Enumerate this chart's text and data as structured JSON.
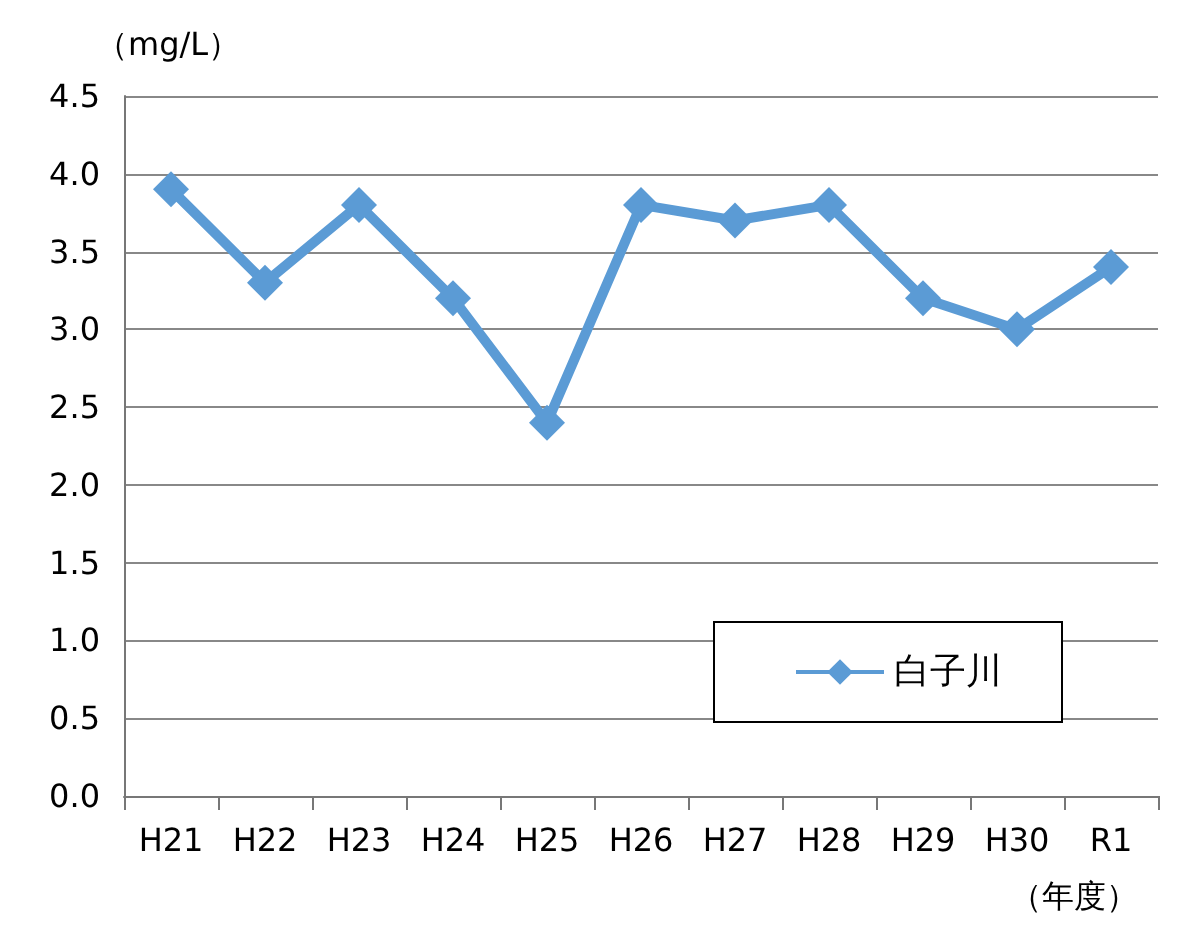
{
  "chart_data": {
    "type": "line",
    "ylabel": "（mg/L）",
    "xlabel": "（年度）",
    "categories": [
      "H21",
      "H22",
      "H23",
      "H24",
      "H25",
      "H26",
      "H27",
      "H28",
      "H29",
      "H30",
      "R1"
    ],
    "series": [
      {
        "name": "白子川",
        "color": "#5b9bd5",
        "values": [
          3.9,
          3.3,
          3.8,
          3.2,
          2.4,
          3.8,
          3.7,
          3.8,
          3.2,
          3.0,
          3.4
        ]
      }
    ],
    "ylim": [
      0,
      4.5
    ],
    "yticks": [
      {
        "value": 0,
        "label": "0.0"
      },
      0.5,
      {
        "value": 1,
        "label": "1.0"
      },
      1.5,
      {
        "value": 2,
        "label": "2.0"
      },
      2.5,
      {
        "value": 3,
        "label": "3.0"
      },
      3.5,
      {
        "value": 4,
        "label": "4.0"
      },
      4.5
    ],
    "grid": "y",
    "legend": "bottom right",
    "marker": "diamond",
    "line_style": "solid"
  }
}
